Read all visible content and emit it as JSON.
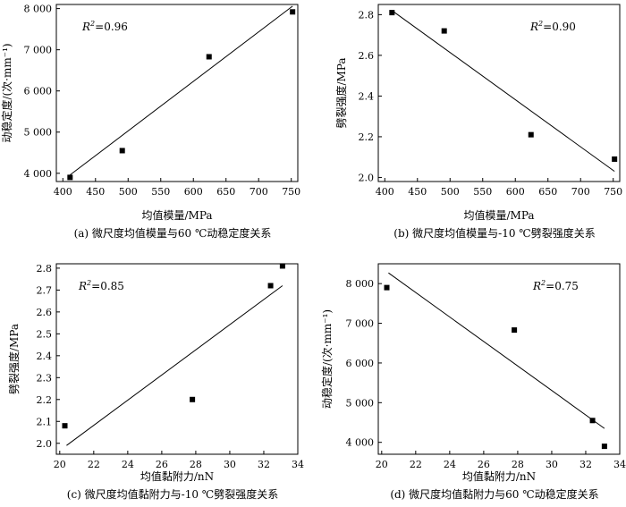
{
  "chart_data": [
    {
      "type": "scatter",
      "xlabel": "均值模量/MPa",
      "ylabel": "动稳定度/(次·mm⁻¹)",
      "caption": "(a) 微尺度均值模量与60 ℃动稳定度关系",
      "r2": "=0.96",
      "xlim": [
        390,
        760
      ],
      "ylim": [
        3800,
        8100
      ],
      "xticks": [
        400,
        450,
        500,
        550,
        600,
        650,
        700,
        750
      ],
      "yticks": [
        4000,
        5000,
        6000,
        7000,
        8000
      ],
      "xtick_labels": [
        "400",
        "450",
        "500",
        "550",
        "600",
        "650",
        "700",
        "750"
      ],
      "ytick_labels": [
        "4 000",
        "5 000",
        "6 000",
        "7 000",
        "8 000"
      ],
      "points": [
        [
          411,
          3900
        ],
        [
          491,
          4550
        ],
        [
          624,
          6830
        ],
        [
          752,
          7920
        ]
      ],
      "fit": [
        [
          411,
          3960
        ],
        [
          752,
          8060
        ]
      ]
    },
    {
      "type": "scatter",
      "xlabel": "均值模量/MPa",
      "ylabel": "劈裂强度/MPa",
      "caption": "(b) 微尺度均值模量与-10 ℃劈裂强度关系",
      "r2": "=0.90",
      "xlim": [
        390,
        760
      ],
      "ylim": [
        1.98,
        2.85
      ],
      "xticks": [
        400,
        450,
        500,
        550,
        600,
        650,
        700,
        750
      ],
      "yticks": [
        2.0,
        2.2,
        2.4,
        2.6,
        2.8
      ],
      "xtick_labels": [
        "400",
        "450",
        "500",
        "550",
        "600",
        "650",
        "700",
        "750"
      ],
      "ytick_labels": [
        "2.0",
        "2.2",
        "2.4",
        "2.6",
        "2.8"
      ],
      "points": [
        [
          411,
          2.81
        ],
        [
          491,
          2.72
        ],
        [
          624,
          2.21
        ],
        [
          752,
          2.09
        ]
      ],
      "fit": [
        [
          411,
          2.82
        ],
        [
          752,
          2.03
        ]
      ]
    },
    {
      "type": "scatter",
      "xlabel": "均值黏附力/nN",
      "ylabel": "劈裂强度/MPa",
      "caption": "(c) 微尺度均值黏附力与-10 ℃劈裂强度关系",
      "r2": "=0.85",
      "xlim": [
        19.8,
        34
      ],
      "ylim": [
        1.95,
        2.82
      ],
      "xticks": [
        20,
        22,
        24,
        26,
        28,
        30,
        32,
        34
      ],
      "yticks": [
        2.0,
        2.1,
        2.2,
        2.3,
        2.4,
        2.5,
        2.6,
        2.7,
        2.8
      ],
      "xtick_labels": [
        "20",
        "22",
        "24",
        "26",
        "28",
        "30",
        "32",
        "34"
      ],
      "ytick_labels": [
        "2.0",
        "2.1",
        "2.2",
        "2.3",
        "2.4",
        "2.5",
        "2.6",
        "2.7",
        "2.8"
      ],
      "points": [
        [
          20.3,
          2.08
        ],
        [
          27.8,
          2.2
        ],
        [
          32.4,
          2.72
        ],
        [
          33.1,
          2.81
        ]
      ],
      "fit": [
        [
          20.4,
          1.99
        ],
        [
          33.1,
          2.72
        ]
      ]
    },
    {
      "type": "scatter",
      "xlabel": "均值黏附力/nN",
      "ylabel": "动稳定度/(次·mm⁻¹)",
      "caption": "(d) 微尺度均值黏附力与60 ℃动稳定度关系",
      "r2": "=0.75",
      "xlim": [
        19.8,
        34
      ],
      "ylim": [
        3700,
        8500
      ],
      "xticks": [
        20,
        22,
        24,
        26,
        28,
        30,
        32,
        34
      ],
      "yticks": [
        4000,
        5000,
        6000,
        7000,
        8000
      ],
      "xtick_labels": [
        "20",
        "22",
        "24",
        "26",
        "28",
        "30",
        "32",
        "34"
      ],
      "ytick_labels": [
        "4 000",
        "5 000",
        "6 000",
        "7 000",
        "8 000"
      ],
      "points": [
        [
          20.3,
          7900
        ],
        [
          27.8,
          6830
        ],
        [
          32.4,
          4550
        ],
        [
          33.1,
          3900
        ]
      ],
      "fit": [
        [
          20.4,
          8270
        ],
        [
          33.1,
          4350
        ]
      ]
    }
  ]
}
